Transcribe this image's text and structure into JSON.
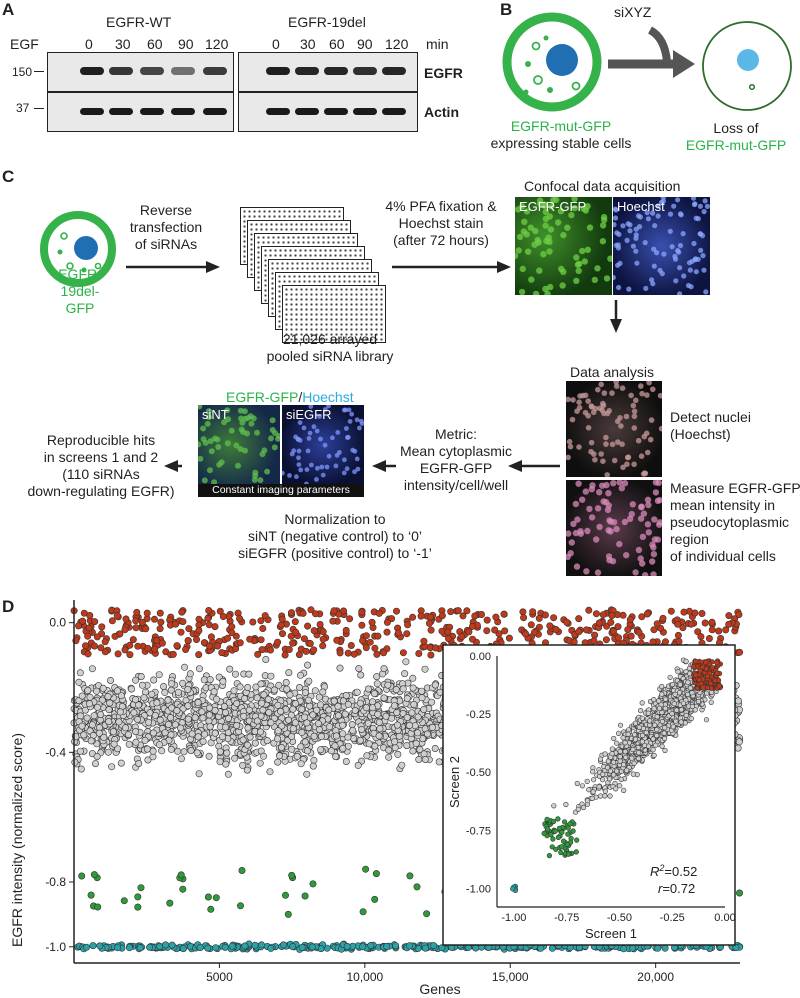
{
  "panels": {
    "a": "A",
    "b": "B",
    "c": "C",
    "d": "D"
  },
  "panel_a": {
    "egf_label": "EGF",
    "min_label": "min",
    "wt_title": "EGFR-WT",
    "del_title": "EGFR-19del",
    "timepoints": [
      "0",
      "30",
      "60",
      "90",
      "120"
    ],
    "mw_150": "150",
    "mw_37": "37",
    "egfr_label": "EGFR",
    "actin_label": "Actin",
    "wt_egfr_intensity": [
      1.0,
      0.85,
      0.75,
      0.45,
      0.8
    ],
    "del_egfr_intensity": [
      1.0,
      0.95,
      0.95,
      0.9,
      0.95
    ]
  },
  "panel_b": {
    "sixyz": "siXYZ",
    "cell_line1": "EGFR-mut-GFP",
    "cell_line2": "expressing stable cells",
    "loss1": "Loss of",
    "loss2": "EGFR-mut-GFP"
  },
  "panel_c": {
    "cell_l1": "EGFR-",
    "cell_l2": "19del-",
    "cell_l3": "GFP",
    "rev1": "Reverse",
    "rev2": "transfection",
    "rev3": "of siRNAs",
    "lib1": "21,026 arrayed",
    "lib2": "pooled siRNA library",
    "pfa1": "4% PFA fixation &",
    "pfa2": "Hoechst stain",
    "pfa3": "(after 72 hours)",
    "confocal": "Confocal data acquisition",
    "img_gfp": "EGFR-GFP",
    "img_hoechst": "Hoechst",
    "data_analysis": "Data analysis",
    "detect1": "Detect nuclei",
    "detect2": "(Hoechst)",
    "measure1": "Measure EGFR-GFP",
    "measure2": "mean intensity in",
    "measure3": "pseudocytoplasmic",
    "measure4": "region",
    "measure5": "of individual cells",
    "metric1": "Metric:",
    "metric2": "Mean cytoplasmic",
    "metric3": "EGFR-GFP",
    "metric4": "intensity/cell/well",
    "merge_gfp": "EGFR-GFP",
    "merge_slash": "/",
    "merge_hoechst": "Hoechst",
    "sint": "siNT",
    "siegfr": "siEGFR",
    "constant": "Constant imaging parameters",
    "norm1": "Normalization to",
    "norm2": "siNT (negative control) to ‘0’",
    "norm3": "siEGFR (positive control) to ‘-1’",
    "hits1": "Reproducible hits",
    "hits2": "in screens 1 and 2",
    "hits3": "(110 siRNAs",
    "hits4": "down-regulating EGFR)"
  },
  "chart_data": [
    {
      "type": "scatter",
      "title": "",
      "xlabel": "Genes",
      "ylabel": "EGFR intensity (normalized score)",
      "xlim": [
        0,
        22900
      ],
      "ylim": [
        -1.05,
        0.07
      ],
      "x_ticks": [
        "5000",
        "10,000",
        "15,000",
        "20,000"
      ],
      "x_tick_values": [
        5000,
        10000,
        15000,
        20000
      ],
      "y_ticks": [
        "0.0",
        "-0.4",
        "-0.8",
        "-1.0"
      ],
      "y_tick_values": [
        0.0,
        -0.4,
        -0.8,
        -1.0
      ],
      "colors": {
        "background": "#cfcfcf",
        "hits": "#c0391b",
        "down": "#2e9a3a",
        "control": "#2aa3a8"
      }
    },
    {
      "type": "scatter",
      "xlabel": "Screen 1",
      "ylabel": "Screen 2",
      "xlim": [
        -1.08,
        0.0
      ],
      "ylim": [
        -1.08,
        0.0
      ],
      "x_ticks": [
        "-1.00",
        "-0.75",
        "-0.50",
        "-0.25",
        "0.00"
      ],
      "x_tick_values": [
        -1.0,
        -0.75,
        -0.5,
        -0.25,
        0.0
      ],
      "y_ticks": [
        "0.00",
        "-0.25",
        "-0.50",
        "-0.75",
        "-1.00"
      ],
      "y_tick_values": [
        0.0,
        -0.25,
        -0.5,
        -0.75,
        -1.0
      ],
      "r2_prefix": "R",
      "r2_sup": "2",
      "r2_value": "=0.52",
      "r_prefix": "r",
      "r_value": "=0.72"
    }
  ]
}
